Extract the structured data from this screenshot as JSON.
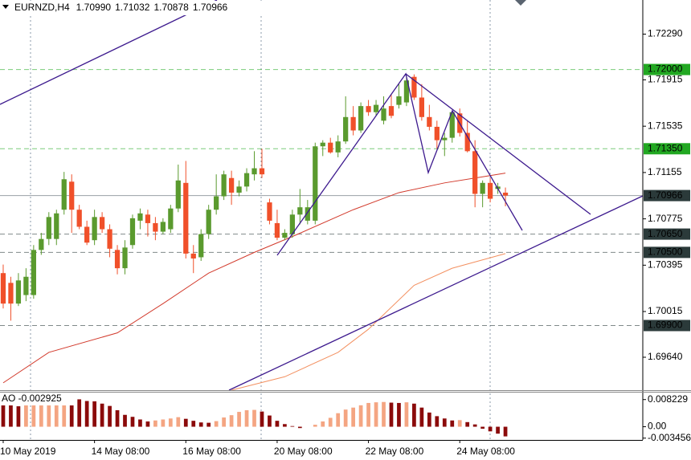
{
  "chart_data": [
    {
      "type": "candlestick",
      "title": "EURNZD,H4",
      "header_values": [
        "1.70990",
        "1.71032",
        "1.70878",
        "1.70966"
      ],
      "up_color": "#5a9a2e",
      "down_color": "#f0502a",
      "open": [
        1.7033,
        1.7025,
        1.7008,
        1.7015,
        1.7015,
        1.7052,
        1.7061,
        1.7061,
        1.7085,
        1.7108,
        1.7085,
        1.7071,
        1.706,
        1.7079,
        1.7069,
        1.7052,
        1.7037,
        1.7056,
        1.7076,
        1.7081,
        1.7074,
        1.7067,
        1.7069,
        1.7086,
        1.7107,
        1.7049,
        1.7046,
        1.7065,
        1.7085,
        1.7096,
        1.7111,
        1.7099,
        1.7104,
        1.7114,
        1.7119,
        1.7091,
        1.7074,
        1.7062,
        1.7065,
        1.7081,
        1.7076,
        1.7076,
        1.7137,
        1.714,
        1.7132,
        1.7141,
        1.7161,
        1.715,
        1.717,
        1.7165,
        1.7158,
        1.717,
        1.7171,
        1.7173,
        1.7194,
        1.7177,
        1.7161,
        1.7153,
        1.7142,
        1.7144,
        1.7164,
        1.7148,
        1.7133,
        1.7098,
        1.7107,
        1.7102,
        1.7099
      ],
      "high": [
        1.704,
        1.703,
        1.7033,
        1.7037,
        1.7056,
        1.7066,
        1.7083,
        1.7085,
        1.7116,
        1.7114,
        1.7089,
        1.7076,
        1.7085,
        1.7083,
        1.7073,
        1.7056,
        1.706,
        1.7081,
        1.7086,
        1.7085,
        1.7079,
        1.7078,
        1.7089,
        1.7122,
        1.7125,
        1.7056,
        1.7069,
        1.7089,
        1.7114,
        1.7117,
        1.7117,
        1.7109,
        1.7119,
        1.7133,
        1.7135,
        1.7094,
        1.7085,
        1.7069,
        1.7085,
        1.7102,
        1.7093,
        1.714,
        1.7142,
        1.7144,
        1.7146,
        1.7178,
        1.717,
        1.7173,
        1.7175,
        1.7175,
        1.7178,
        1.7179,
        1.7188,
        1.7194,
        1.7196,
        1.7188,
        1.7171,
        1.7158,
        1.7148,
        1.7166,
        1.7168,
        1.7158,
        1.7142,
        1.7109,
        1.7111,
        1.7107,
        1.71032
      ],
      "low": [
        1.7004,
        1.6994,
        1.7006,
        1.701,
        1.7012,
        1.7048,
        1.7056,
        1.7056,
        1.7081,
        1.7066,
        1.7069,
        1.7056,
        1.7056,
        1.7066,
        1.7046,
        1.7032,
        1.7032,
        1.7053,
        1.7069,
        1.7063,
        1.706,
        1.7065,
        1.7066,
        1.7083,
        1.7045,
        1.7033,
        1.7043,
        1.7061,
        1.7081,
        1.7093,
        1.7089,
        1.7096,
        1.71,
        1.7109,
        1.7111,
        1.7073,
        1.706,
        1.706,
        1.7062,
        1.7073,
        1.7073,
        1.7073,
        1.7129,
        1.7131,
        1.7128,
        1.7139,
        1.7146,
        1.7148,
        1.7162,
        1.7162,
        1.7155,
        1.716,
        1.7168,
        1.717,
        1.7175,
        1.7158,
        1.715,
        1.7135,
        1.7129,
        1.714,
        1.7145,
        1.7132,
        1.7087,
        1.7087,
        1.7091,
        1.7098,
        1.70878
      ],
      "close": [
        1.7008,
        1.7008,
        1.7027,
        1.703,
        1.7052,
        1.7061,
        1.7079,
        1.7082,
        1.711,
        1.7085,
        1.7071,
        1.7058,
        1.7079,
        1.7069,
        1.7053,
        1.7037,
        1.7054,
        1.7078,
        1.7082,
        1.7074,
        1.7067,
        1.7075,
        1.7086,
        1.7109,
        1.7049,
        1.7045,
        1.7065,
        1.7085,
        1.7096,
        1.7114,
        1.7099,
        1.7104,
        1.7115,
        1.7119,
        1.7114,
        1.7076,
        1.7062,
        1.7066,
        1.7081,
        1.7087,
        1.7087,
        1.7137,
        1.714,
        1.7132,
        1.7141,
        1.7161,
        1.715,
        1.717,
        1.7165,
        1.7171,
        1.7168,
        1.7162,
        1.7178,
        1.7191,
        1.7177,
        1.7161,
        1.7153,
        1.7142,
        1.7144,
        1.7165,
        1.7148,
        1.7133,
        1.7098,
        1.7107,
        1.7094,
        1.7104,
        1.70966
      ],
      "xlim": [
        -0.42,
        84.05
      ],
      "xticks": [
        {
          "value": 0,
          "label": "10 May 2019"
        },
        {
          "value": 12,
          "label": "14 May 08:00"
        },
        {
          "value": 24,
          "label": "16 May 08:00"
        },
        {
          "value": 36,
          "label": "20 May 08:00"
        },
        {
          "value": 48,
          "label": "22 May 08:00"
        },
        {
          "value": 60,
          "label": "24 May 08:00"
        }
      ],
      "ylim": [
        1.6937,
        1.7257
      ],
      "yticks": [
        {
          "value": 1.7229,
          "label": "1.72290"
        },
        1.71915,
        1.71535,
        1.71155,
        1.70775,
        1.70395,
        1.70015,
        {
          "value": 1.6964,
          "label": "1.69640"
        }
      ],
      "levels": [
        {
          "value": 1.72,
          "label": "1.72000",
          "color": "#22a822",
          "text_color": "#000000",
          "line_style": "dashed"
        },
        {
          "value": 1.7135,
          "label": "1.71350",
          "color": "#22a822",
          "text_color": "#000000",
          "line_style": "dashed"
        },
        {
          "value": 1.70966,
          "label": "1.70966",
          "color": "#2b3a3a",
          "text_color": "#ffffff",
          "line_style": "solid"
        },
        {
          "value": 1.7065,
          "label": "1.70650",
          "color": "#2b3a3a",
          "text_color": "#ffffff",
          "line_style": "dashed"
        },
        {
          "value": 1.705,
          "label": "1.70500",
          "color": "#2b3a3a",
          "text_color": "#ffffff",
          "line_style": "dashed"
        },
        {
          "value": 1.699,
          "label": "1.69900",
          "color": "#2b3a3a",
          "text_color": "#ffffff",
          "line_style": "dashed"
        }
      ],
      "series": [
        {
          "color": "#d23a2c",
          "x": [
            0,
            6,
            15,
            21,
            27,
            33,
            38,
            46,
            52,
            58,
            63,
            66
          ],
          "values": [
            1.6943,
            1.6968,
            1.6984,
            1.7008,
            1.7033,
            1.705,
            1.7063,
            1.7085,
            1.7099,
            1.7107,
            1.7112,
            1.7115
          ]
        },
        {
          "color": "#f39060",
          "x": [
            30,
            37,
            44,
            48,
            54,
            59,
            66
          ],
          "values": [
            1.6937,
            1.6948,
            1.6968,
            1.6987,
            1.7023,
            1.7037,
            1.7049
          ]
        }
      ]
    },
    {
      "type": "bar",
      "title": "AO -0.002925",
      "up_color": "#f4a582",
      "down_color": "#8b0a0a",
      "values": [
        0.0079,
        0.007,
        0.0062,
        0.0066,
        0.0072,
        0.0078,
        0.0083,
        0.009,
        0.0091,
        0.0088,
        0.0083,
        0.0078,
        0.0077,
        0.007,
        0.0063,
        0.005,
        0.0036,
        0.003,
        0.0022,
        0.0016,
        0.0019,
        0.0022,
        0.0025,
        0.0029,
        0.0024,
        0.0018,
        0.0013,
        0.0012,
        0.0017,
        0.0028,
        0.0035,
        0.0045,
        0.005,
        0.0051,
        0.0046,
        0.0034,
        0.0018,
        0.0008,
        0.0002,
        -0.0004,
        0,
        0.0006,
        0.0016,
        0.0027,
        0.0041,
        0.0052,
        0.0058,
        0.0065,
        0.0072,
        0.0074,
        0.0075,
        0.0073,
        0.0072,
        0.0074,
        0.007,
        0.0058,
        0.0043,
        0.0032,
        0.0025,
        0.0019,
        0.002,
        0.0014,
        0.0007,
        -0.0006,
        -0.0014,
        -0.0021,
        -0.002925
      ],
      "ylim": [
        -0.004,
        0.01035
      ],
      "yticks": [
        0.008229,
        {
          "value": 0,
          "label": "0.00"
        },
        -0.003456
      ]
    }
  ]
}
